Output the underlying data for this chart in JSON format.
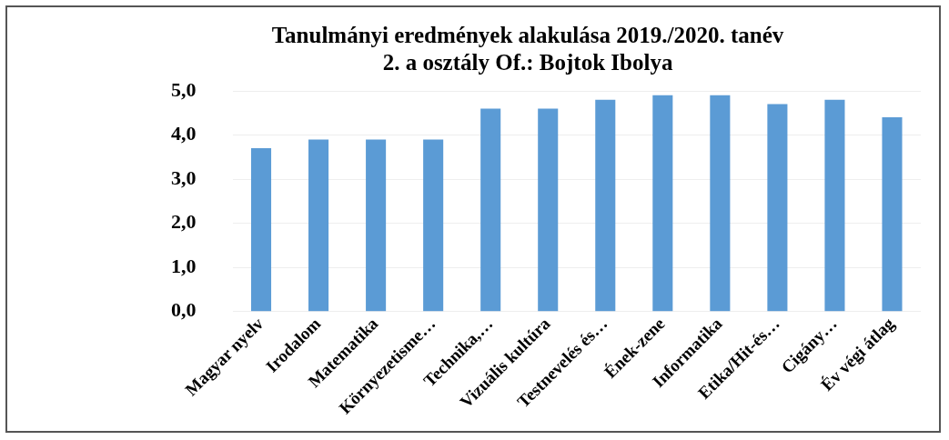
{
  "chart_data": {
    "type": "bar",
    "title": "Tanulmányi eredmények alakulása 2019./2020. tanév",
    "subtitle": "2. a osztály Of.: Bojtok Ibolya",
    "categories": [
      "Magyar nyelv",
      "Irodalom",
      "Matematika",
      "Környezetisme…",
      "Technika,…",
      "Vizuális kultúra",
      "Testnevelés és…",
      "Ének-zene",
      "Informatika",
      "Etika/Hit-és…",
      "Cigány…",
      "Év végi átlag"
    ],
    "values": [
      3.7,
      3.9,
      3.9,
      3.9,
      4.6,
      4.6,
      4.8,
      4.9,
      4.9,
      4.7,
      4.8,
      4.4
    ],
    "color": "#5b9bd5",
    "ylim": [
      0,
      5
    ],
    "yticks": [
      {
        "value": 0,
        "label": "0,0"
      },
      {
        "value": 1,
        "label": "1,0"
      },
      {
        "value": 2,
        "label": "2,0"
      },
      {
        "value": 3,
        "label": "3,0"
      },
      {
        "value": 4,
        "label": "4,0"
      },
      {
        "value": 5,
        "label": "5,0"
      }
    ],
    "grid": "y"
  }
}
